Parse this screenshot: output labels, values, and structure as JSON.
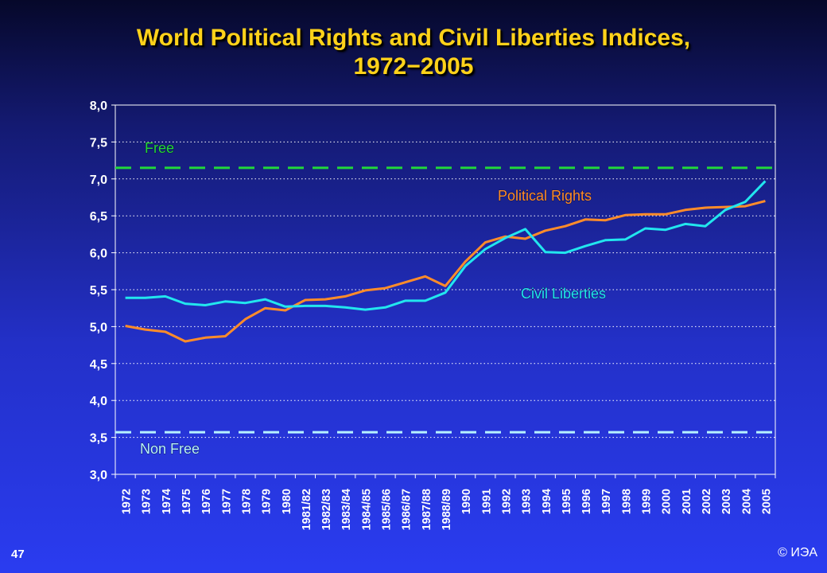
{
  "slide": {
    "title": "World Political Rights and Civil Liberties Indices,\n1972−2005",
    "slide_number": "47",
    "copyright": "© ИЭА"
  },
  "colors": {
    "political_rights": "#ff8c2a",
    "civil_liberties": "#22e6ee",
    "free_line": "#22d83a",
    "non_free_line": "#b7f3ff",
    "title": "#ffd21a"
  },
  "chart_data": {
    "type": "line",
    "title": "World Political Rights and Civil Liberties Indices, 1972−2005",
    "xlabel": "",
    "ylabel": "",
    "ylim": [
      3.0,
      8.0
    ],
    "y_ticks": [
      "3,0",
      "3,5",
      "4,0",
      "4,5",
      "5,0",
      "5,5",
      "6,0",
      "6,5",
      "7,0",
      "7,5",
      "8,0"
    ],
    "categories": [
      "1972",
      "1973",
      "1974",
      "1975",
      "1976",
      "1977",
      "1978",
      "1979",
      "1980",
      "1981/82",
      "1982/83",
      "1983/84",
      "1984/85",
      "1985/86",
      "1986/87",
      "1987/88",
      "1988/89",
      "1990",
      "1991",
      "1992",
      "1993",
      "1994",
      "1995",
      "1996",
      "1997",
      "1998",
      "1999",
      "2000",
      "2001",
      "2002",
      "2003",
      "2004",
      "2005"
    ],
    "grid": "horizontal dotted",
    "series": [
      {
        "name": "Political Rights",
        "color": "#ff8c2a",
        "values": [
          5.01,
          4.96,
          4.93,
          4.8,
          4.85,
          4.87,
          5.1,
          5.25,
          5.22,
          5.36,
          5.37,
          5.41,
          5.49,
          5.52,
          5.6,
          5.68,
          5.55,
          5.88,
          6.14,
          6.22,
          6.19,
          6.3,
          6.36,
          6.45,
          6.44,
          6.51,
          6.52,
          6.52,
          6.58,
          6.61,
          6.62,
          6.63,
          6.7
        ]
      },
      {
        "name": "Civil Liberties",
        "color": "#22e6ee",
        "values": [
          5.39,
          5.39,
          5.41,
          5.31,
          5.29,
          5.34,
          5.32,
          5.37,
          5.27,
          5.28,
          5.28,
          5.26,
          5.23,
          5.26,
          5.35,
          5.35,
          5.46,
          5.82,
          6.05,
          6.2,
          6.32,
          6.01,
          6.0,
          6.09,
          6.17,
          6.18,
          6.33,
          6.31,
          6.39,
          6.36,
          6.58,
          6.69,
          6.97
        ]
      }
    ],
    "reference_lines": [
      {
        "name": "Free",
        "value": 7.15,
        "color": "#22d83a"
      },
      {
        "name": "Non Free",
        "value": 3.57,
        "color": "#b7f3ff"
      }
    ]
  }
}
